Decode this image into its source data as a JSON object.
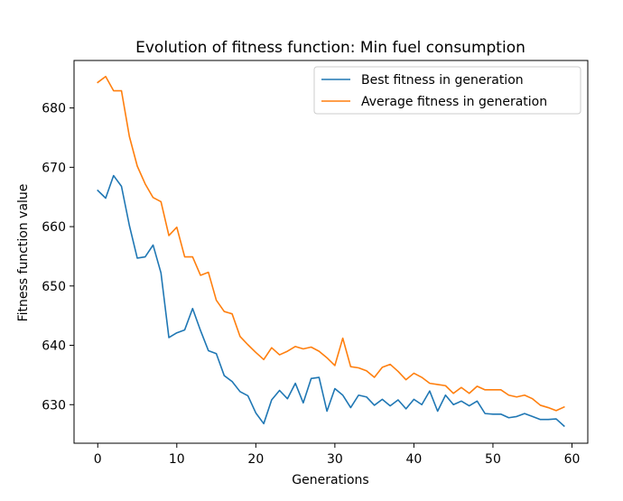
{
  "chart_data": {
    "type": "line",
    "title": "Evolution of fitness function: Min fuel consumption",
    "xlabel": "Generations",
    "ylabel": "Fitness function value",
    "xlim": [
      -3,
      62
    ],
    "ylim": [
      623.5,
      688
    ],
    "xticks": [
      0,
      10,
      20,
      30,
      40,
      50,
      60
    ],
    "yticks": [
      630,
      640,
      650,
      660,
      670,
      680
    ],
    "grid": false,
    "legend_position": "upper right",
    "series": [
      {
        "name": "Best fitness in generation",
        "color": "#1f77b4",
        "values": [
          666.1,
          664.8,
          668.6,
          666.8,
          660.2,
          654.7,
          654.9,
          656.9,
          652.2,
          641.3,
          642.1,
          642.6,
          646.2,
          642.5,
          639.1,
          638.6,
          634.9,
          633.9,
          632.2,
          631.5,
          628.6,
          626.8,
          630.8,
          632.4,
          631.0,
          633.6,
          630.3,
          634.4,
          634.6,
          628.9,
          632.7,
          631.6,
          629.5,
          631.6,
          631.3,
          629.9,
          630.9,
          629.8,
          630.8,
          629.3,
          630.9,
          630.0,
          632.3,
          628.9,
          631.6,
          630.0,
          630.6,
          629.8,
          630.6,
          628.5,
          628.4,
          628.4,
          627.8,
          628.0,
          628.5,
          628.0,
          627.5,
          627.5,
          627.6,
          626.4
        ]
      },
      {
        "name": "Average fitness in generation",
        "color": "#ff7f0e",
        "values": [
          684.3,
          685.3,
          682.9,
          682.9,
          675.2,
          670.2,
          667.2,
          664.9,
          664.2,
          658.5,
          659.9,
          654.9,
          654.9,
          651.8,
          652.3,
          647.6,
          645.7,
          645.3,
          641.5,
          640.1,
          638.8,
          637.6,
          639.6,
          638.4,
          639.0,
          639.8,
          639.4,
          639.7,
          639.0,
          637.9,
          636.6,
          641.2,
          636.4,
          636.2,
          635.7,
          634.6,
          636.3,
          636.8,
          635.6,
          634.2,
          635.3,
          634.6,
          633.6,
          633.4,
          633.2,
          631.9,
          632.9,
          631.9,
          633.1,
          632.5,
          632.5,
          632.5,
          631.6,
          631.3,
          631.6,
          631.0,
          629.9,
          629.5,
          629.0,
          629.6
        ]
      }
    ]
  }
}
